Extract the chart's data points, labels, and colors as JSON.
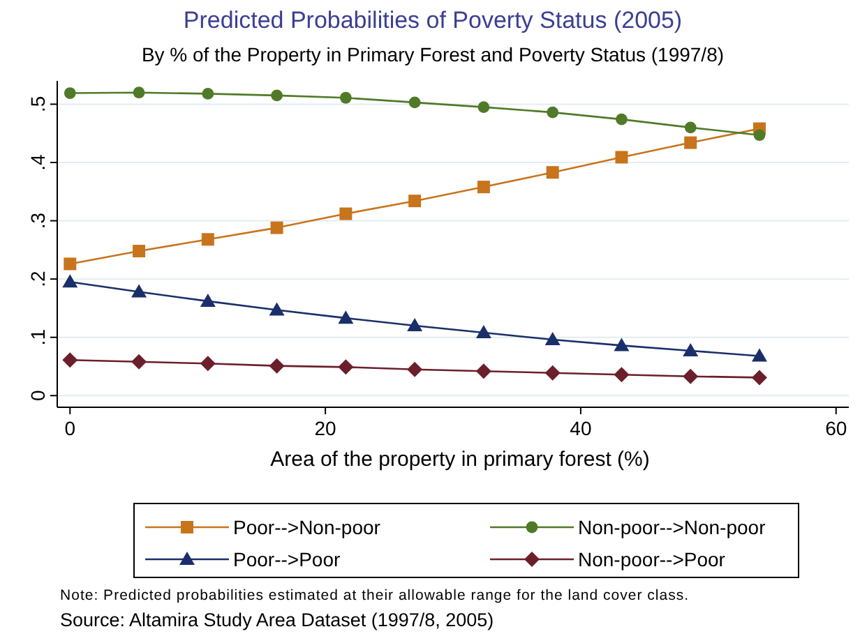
{
  "chart_data": {
    "type": "line",
    "title": "Predicted Probabilities of Poverty Status (2005)",
    "subtitle": "By % of the Property in Primary Forest and Poverty Status (1997/8)",
    "xlabel": "Area of the property in primary forest (%)",
    "x": [
      0,
      5.4,
      10.8,
      16.2,
      21.6,
      27,
      32.4,
      37.8,
      43.2,
      48.6,
      54
    ],
    "series": [
      {
        "name": "Poor-->Non-poor",
        "color": "#c8741c",
        "marker": "square",
        "values": [
          0.226,
          0.248,
          0.268,
          0.288,
          0.312,
          0.334,
          0.358,
          0.383,
          0.409,
          0.434,
          0.458
        ]
      },
      {
        "name": "Non-poor-->Non-poor",
        "color": "#4f7a28",
        "marker": "circle",
        "values": [
          0.519,
          0.52,
          0.518,
          0.515,
          0.511,
          0.503,
          0.495,
          0.486,
          0.474,
          0.46,
          0.447
        ]
      },
      {
        "name": "Poor-->Poor",
        "color": "#1a2f6a",
        "marker": "triangle",
        "values": [
          0.195,
          0.178,
          0.162,
          0.147,
          0.133,
          0.12,
          0.108,
          0.096,
          0.086,
          0.077,
          0.068
        ]
      },
      {
        "name": "Non-poor-->Poor",
        "color": "#6b1f2b",
        "marker": "diamond",
        "values": [
          0.061,
          0.058,
          0.055,
          0.051,
          0.049,
          0.045,
          0.042,
          0.039,
          0.036,
          0.033,
          0.031
        ]
      }
    ],
    "xlim": [
      -1,
      61
    ],
    "xticks": [
      0,
      20,
      40,
      60
    ],
    "ylim": [
      -0.02,
      0.54
    ],
    "yticks": [
      0,
      {
        "value": 0.1,
        "label": ".1"
      },
      {
        "value": 0.2,
        "label": ".2"
      },
      {
        "value": 0.3,
        "label": ".3"
      },
      {
        "value": 0.4,
        "label": ".4"
      },
      {
        "value": 0.5,
        "label": ".5"
      }
    ],
    "grid": "y",
    "legend": "bottom",
    "annotations": [
      "Note: Predicted probabilities estimated at their allowable range for the land cover class.",
      "Source: Altamira Study Area Dataset (1997/8, 2005)"
    ]
  }
}
